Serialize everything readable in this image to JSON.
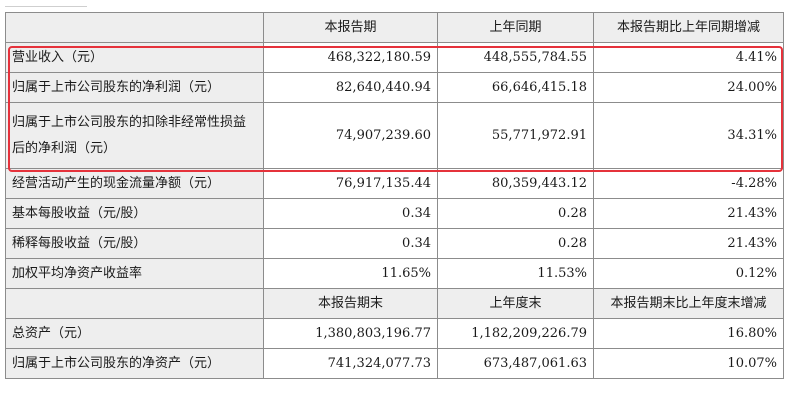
{
  "table": {
    "header1": [
      "",
      "本报告期",
      "上年同期",
      "本报告期比上年同期增减"
    ],
    "rows1": [
      {
        "label": "营业收入（元）",
        "current": "468,322,180.59",
        "prior": "448,555,784.55",
        "change": "4.41%"
      },
      {
        "label": "归属于上市公司股东的净利润（元）",
        "current": "82,640,440.94",
        "prior": "66,646,415.18",
        "change": "24.00%"
      },
      {
        "label": "归属于上市公司股东的扣除非经常性损益后的净利润（元）",
        "current": "74,907,239.60",
        "prior": "55,771,972.91",
        "change": "34.31%"
      },
      {
        "label": "经营活动产生的现金流量净额（元）",
        "current": "76,917,135.44",
        "prior": "80,359,443.12",
        "change": "-4.28%"
      },
      {
        "label": "基本每股收益（元/股）",
        "current": "0.34",
        "prior": "0.28",
        "change": "21.43%"
      },
      {
        "label": "稀释每股收益（元/股）",
        "current": "0.34",
        "prior": "0.28",
        "change": "21.43%"
      },
      {
        "label": "加权平均净资产收益率",
        "current": "11.65%",
        "prior": "11.53%",
        "change": "0.12%"
      }
    ],
    "header2": [
      "",
      "本报告期末",
      "上年度末",
      "本报告期末比上年度末增减"
    ],
    "rows2": [
      {
        "label": "总资产（元）",
        "current": "1,380,803,196.77",
        "prior": "1,182,209,226.79",
        "change": "16.80%"
      },
      {
        "label": "归属于上市公司股东的净资产（元）",
        "current": "741,324,077.73",
        "prior": "673,487,061.63",
        "change": "10.07%"
      }
    ]
  },
  "highlight_color": "#e5323b"
}
